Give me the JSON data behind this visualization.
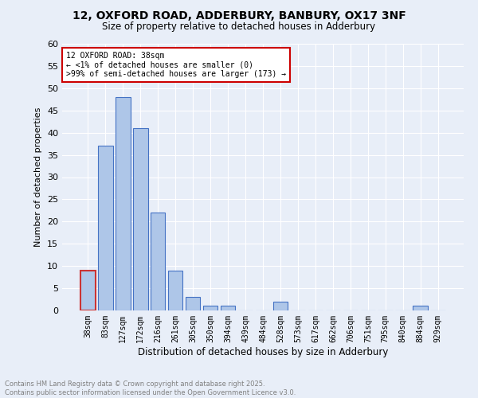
{
  "title_line1": "12, OXFORD ROAD, ADDERBURY, BANBURY, OX17 3NF",
  "title_line2": "Size of property relative to detached houses in Adderbury",
  "xlabel": "Distribution of detached houses by size in Adderbury",
  "ylabel": "Number of detached properties",
  "bar_color": "#aec6e8",
  "bar_edge_color": "#4472c4",
  "background_color": "#e8eef8",
  "grid_color": "#ffffff",
  "categories": [
    "38sqm",
    "83sqm",
    "127sqm",
    "172sqm",
    "216sqm",
    "261sqm",
    "305sqm",
    "350sqm",
    "394sqm",
    "439sqm",
    "484sqm",
    "528sqm",
    "573sqm",
    "617sqm",
    "662sqm",
    "706sqm",
    "751sqm",
    "795sqm",
    "840sqm",
    "884sqm",
    "929sqm"
  ],
  "values": [
    9,
    37,
    48,
    41,
    22,
    9,
    3,
    1,
    1,
    0,
    0,
    2,
    0,
    0,
    0,
    0,
    0,
    0,
    0,
    1,
    0
  ],
  "ylim": [
    0,
    60
  ],
  "yticks": [
    0,
    5,
    10,
    15,
    20,
    25,
    30,
    35,
    40,
    45,
    50,
    55,
    60
  ],
  "annotation_text": "12 OXFORD ROAD: 38sqm\n← <1% of detached houses are smaller (0)\n>99% of semi-detached houses are larger (173) →",
  "annotation_box_color": "#ffffff",
  "annotation_border_color": "#cc0000",
  "footer_line1": "Contains HM Land Registry data © Crown copyright and database right 2025.",
  "footer_line2": "Contains public sector information licensed under the Open Government Licence v3.0.",
  "footer_color": "#808080",
  "highlight_bar_index": 0,
  "highlight_bar_color": "#cc3333",
  "fig_width": 6.0,
  "fig_height": 5.0,
  "fig_dpi": 100
}
